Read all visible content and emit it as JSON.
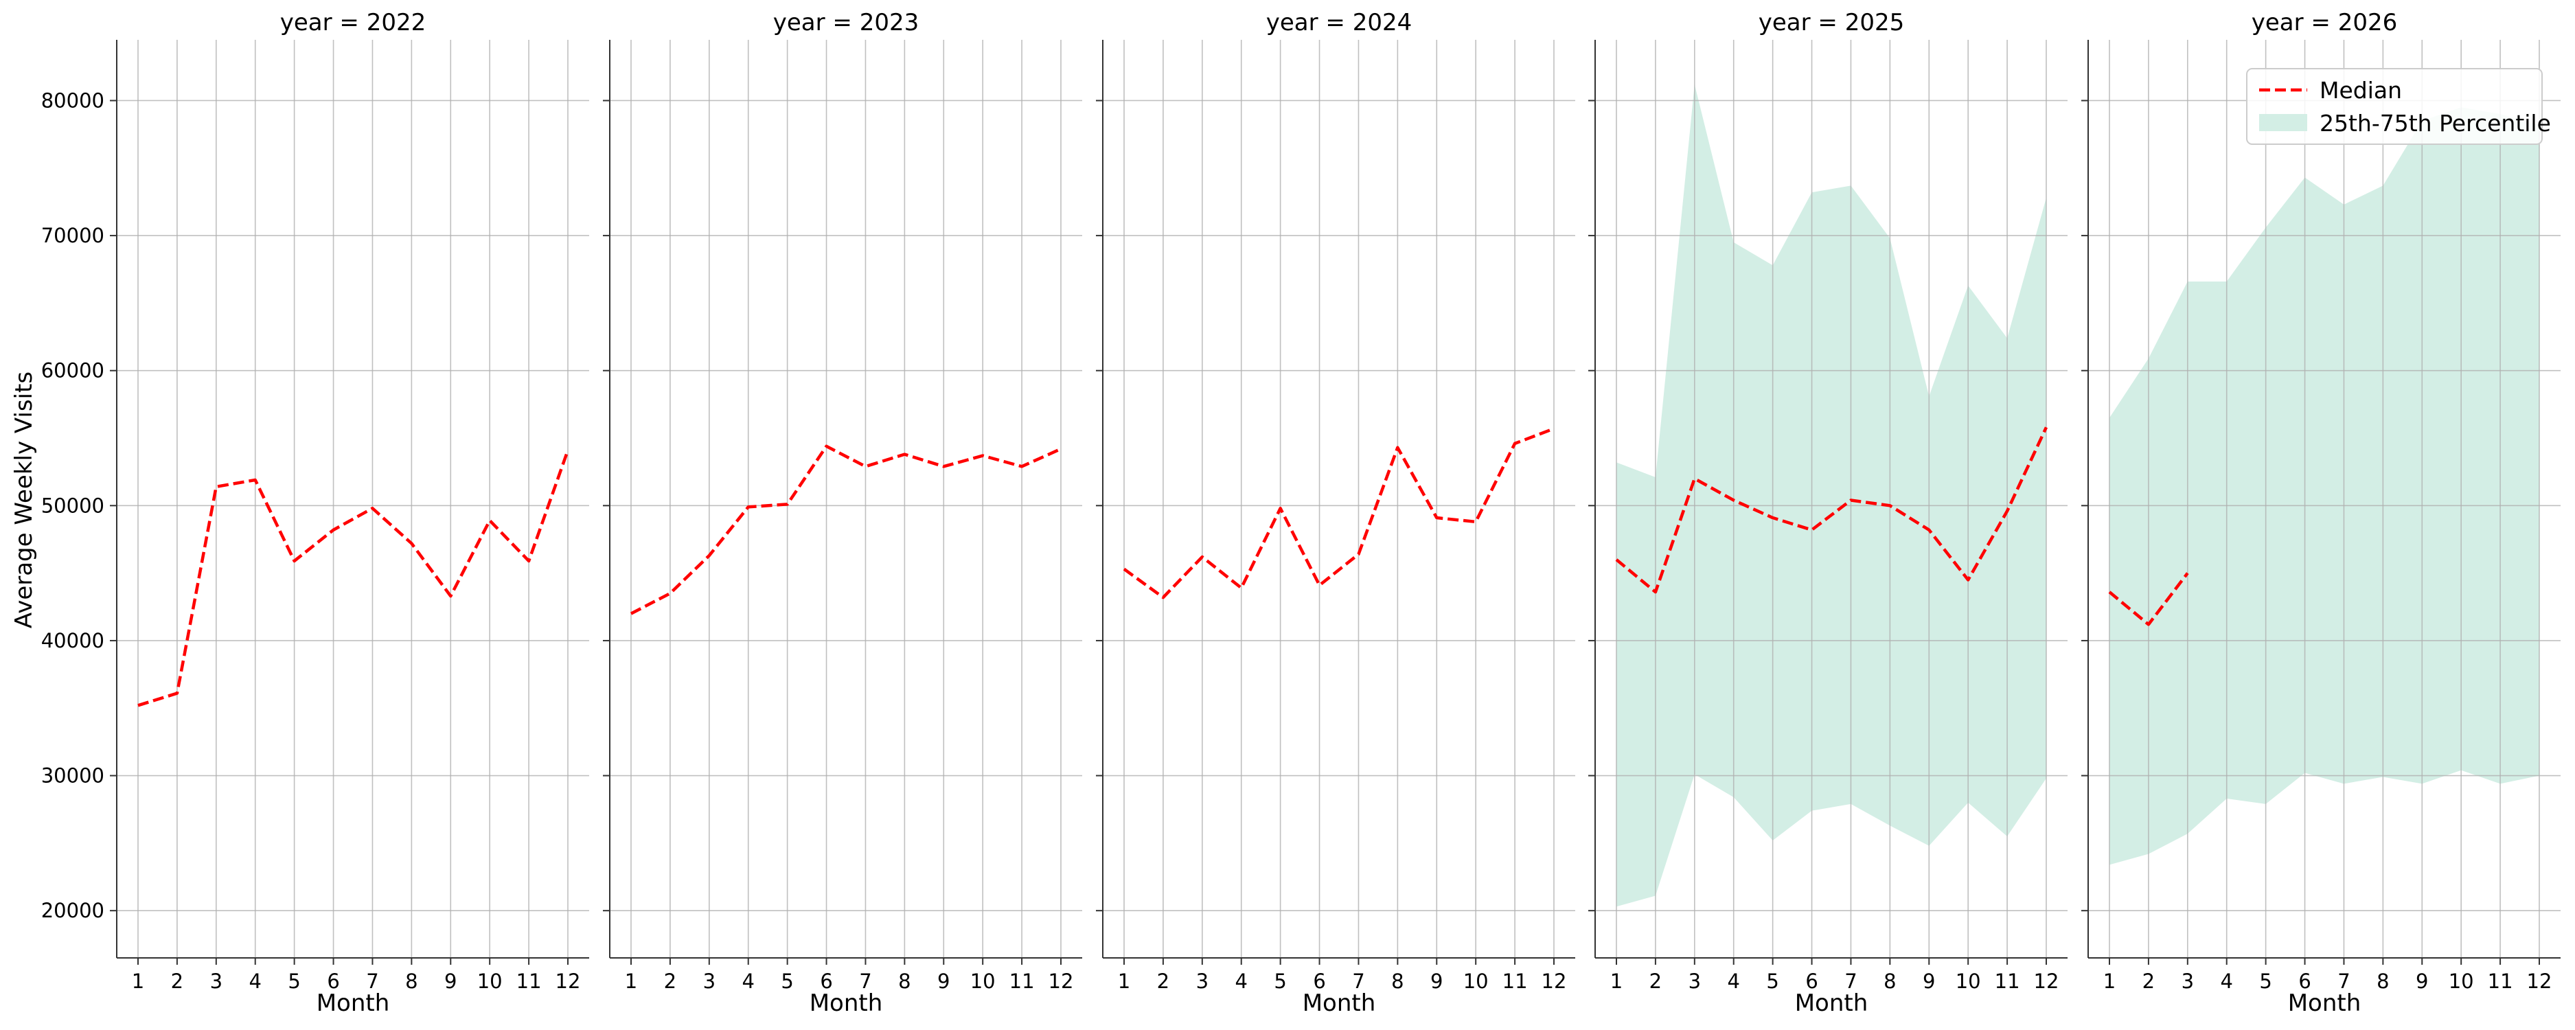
{
  "figure": {
    "ylabel": "Average Weekly Visits",
    "xlabel": "Month",
    "colors": {
      "median": "#ff0000",
      "band": "#d3eee5",
      "grid": "#b0b0b0"
    }
  },
  "legend": {
    "placement": "top-right (last panel)",
    "median_label": "Median",
    "band_label": "25th-75th Percentile"
  },
  "chart_data": [
    {
      "type": "line",
      "title": "year = 2022",
      "xlabel": "Month",
      "ylabel": "Average Weekly Visits",
      "x": [
        1,
        2,
        3,
        4,
        5,
        6,
        7,
        8,
        9,
        10,
        11,
        12
      ],
      "xticks": [
        1,
        2,
        3,
        4,
        5,
        6,
        7,
        8,
        9,
        10,
        11,
        12
      ],
      "ylim": [
        16500,
        84500
      ],
      "yticks": [
        20000,
        30000,
        40000,
        50000,
        60000,
        70000,
        80000
      ],
      "grid": true,
      "series": [
        {
          "name": "Median",
          "style": "dashed",
          "color": "#ff0000",
          "values": [
            35200,
            36100,
            51400,
            51900,
            45900,
            48200,
            49800,
            47200,
            43300,
            48900,
            45900,
            54100
          ]
        }
      ],
      "band": null
    },
    {
      "type": "line",
      "title": "year = 2023",
      "xlabel": "Month",
      "x": [
        1,
        2,
        3,
        4,
        5,
        6,
        7,
        8,
        9,
        10,
        11,
        12
      ],
      "xticks": [
        1,
        2,
        3,
        4,
        5,
        6,
        7,
        8,
        9,
        10,
        11,
        12
      ],
      "ylim": [
        16500,
        84500
      ],
      "grid": true,
      "series": [
        {
          "name": "Median",
          "style": "dashed",
          "color": "#ff0000",
          "values": [
            42000,
            43500,
            46300,
            49900,
            50100,
            54400,
            52900,
            53800,
            52900,
            53700,
            52900,
            54200
          ]
        }
      ],
      "band": null
    },
    {
      "type": "line",
      "title": "year = 2024",
      "xlabel": "Month",
      "x": [
        1,
        2,
        3,
        4,
        5,
        6,
        7,
        8,
        9,
        10,
        11,
        12
      ],
      "xticks": [
        1,
        2,
        3,
        4,
        5,
        6,
        7,
        8,
        9,
        10,
        11,
        12
      ],
      "ylim": [
        16500,
        84500
      ],
      "grid": true,
      "series": [
        {
          "name": "Median",
          "style": "dashed",
          "color": "#ff0000",
          "values": [
            45300,
            43200,
            46200,
            43900,
            49800,
            44100,
            46400,
            54300,
            49100,
            48800,
            54600,
            55700
          ]
        }
      ],
      "band": null
    },
    {
      "type": "area",
      "title": "year = 2025",
      "xlabel": "Month",
      "x": [
        1,
        2,
        3,
        4,
        5,
        6,
        7,
        8,
        9,
        10,
        11,
        12
      ],
      "xticks": [
        1,
        2,
        3,
        4,
        5,
        6,
        7,
        8,
        9,
        10,
        11,
        12
      ],
      "ylim": [
        16500,
        84500
      ],
      "grid": true,
      "series": [
        {
          "name": "Median",
          "style": "dashed",
          "color": "#ff0000",
          "values": [
            46000,
            43600,
            52000,
            50400,
            49100,
            48200,
            50400,
            50000,
            48200,
            44500,
            49600,
            55800
          ]
        }
      ],
      "band": {
        "name": "25th-75th Percentile",
        "x": [
          1,
          2,
          3,
          4,
          5,
          6,
          7,
          8,
          9,
          10,
          11,
          12
        ],
        "low": [
          20300,
          21100,
          30100,
          28400,
          25200,
          27400,
          27900,
          26300,
          24800,
          28000,
          25500,
          29800
        ],
        "high": [
          53200,
          52100,
          81200,
          69500,
          67800,
          73200,
          73700,
          69800,
          58100,
          66300,
          62400,
          72800
        ]
      }
    },
    {
      "type": "area",
      "title": "year = 2026",
      "xlabel": "Month",
      "x": [
        1,
        2,
        3,
        4,
        5,
        6,
        7,
        8,
        9,
        10,
        11,
        12
      ],
      "xticks": [
        1,
        2,
        3,
        4,
        5,
        6,
        7,
        8,
        9,
        10,
        11,
        12
      ],
      "ylim": [
        16500,
        84500
      ],
      "grid": true,
      "series": [
        {
          "name": "Median",
          "style": "dashed",
          "color": "#ff0000",
          "x": [
            1,
            2,
            3
          ],
          "values": [
            43600,
            41200,
            45000
          ]
        }
      ],
      "band": {
        "name": "25th-75th Percentile",
        "x": [
          1,
          2,
          3,
          4,
          5,
          6,
          7,
          8,
          9,
          10,
          11,
          12
        ],
        "low": [
          23400,
          24200,
          25700,
          28300,
          27900,
          30200,
          29400,
          29900,
          29400,
          30400,
          29400,
          30000
        ],
        "high": [
          56500,
          60900,
          66600,
          66600,
          70600,
          74300,
          72300,
          73700,
          78500,
          79500,
          79000,
          78200
        ]
      }
    }
  ]
}
